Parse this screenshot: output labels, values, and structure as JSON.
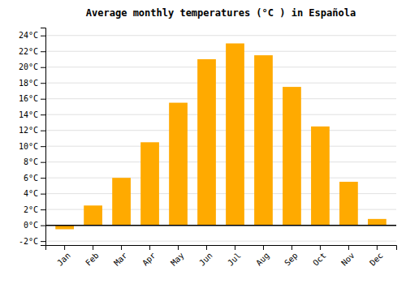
{
  "chart_data": {
    "type": "bar",
    "title": "Average monthly temperatures (°C ) in Española",
    "categories": [
      "Jan",
      "Feb",
      "Mar",
      "Apr",
      "May",
      "Jun",
      "Jul",
      "Aug",
      "Sep",
      "Oct",
      "Nov",
      "Dec"
    ],
    "values": [
      -0.5,
      2.5,
      6.0,
      10.5,
      15.5,
      21.0,
      23.0,
      21.5,
      17.5,
      12.5,
      5.5,
      0.8
    ],
    "color": "#FFAA00",
    "ylim": [
      -2.5,
      25.0
    ],
    "yticks": [
      {
        "value": -2,
        "label": "-2°C"
      },
      {
        "value": 0,
        "label": "0°C"
      },
      {
        "value": 2,
        "label": "2°C"
      },
      {
        "value": 4,
        "label": "4°C"
      },
      {
        "value": 6,
        "label": "6°C"
      },
      {
        "value": 8,
        "label": "8°C"
      },
      {
        "value": 10,
        "label": "10°C"
      },
      {
        "value": 12,
        "label": "12°C"
      },
      {
        "value": 14,
        "label": "14°C"
      },
      {
        "value": 16,
        "label": "16°C"
      },
      {
        "value": 18,
        "label": "18°C"
      },
      {
        "value": 20,
        "label": "20°C"
      },
      {
        "value": 22,
        "label": "22°C"
      },
      {
        "value": 24,
        "label": "24°C"
      }
    ],
    "grid": true
  }
}
